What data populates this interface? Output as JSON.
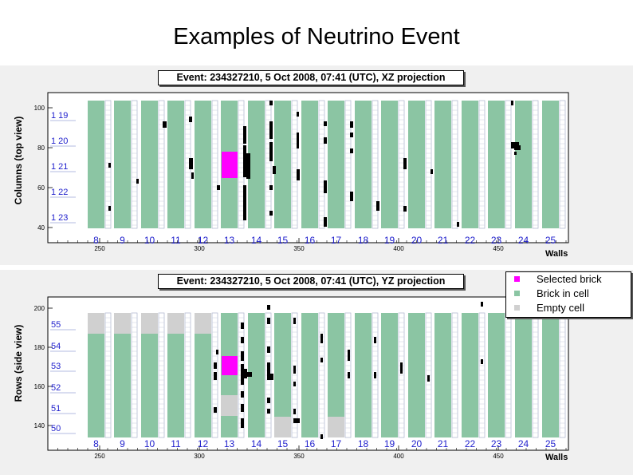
{
  "title": "Examples of Neutrino Event",
  "colors": {
    "panel_bg": "#f0f0f0",
    "brick": "#8bc5a3",
    "selected_brick": "#ff00ff",
    "empty_cell": "#d0d0d0",
    "hit": "#000000",
    "label_blue": "#1e1ecc"
  },
  "top_panel": {
    "event_label": "Event: 234327210,  5 Oct 2008, 07:41 (UTC), XZ projection",
    "y_axis_label": "Columns (top view)",
    "x_axis_label": "Walls",
    "y_ticks": [
      "100",
      "80",
      "60",
      "40"
    ],
    "x_ticks": [
      "250",
      "300",
      "350",
      "400",
      "450"
    ],
    "wall_numbers": [
      "8",
      "9",
      "10",
      "11",
      "12",
      "13",
      "14",
      "15",
      "16",
      "17",
      "18",
      "19",
      "20",
      "21",
      "22",
      "23",
      "24",
      "25"
    ],
    "cell_labels": [
      "1 19",
      "1 20",
      "1 21",
      "1 22",
      "1 23"
    ]
  },
  "bottom_panel": {
    "event_label": "Event: 234327210,  5 Oct 2008, 07:41 (UTC), YZ projection",
    "y_axis_label": "Rows (side view)",
    "x_axis_label": "Walls",
    "y_ticks": [
      "200",
      "180",
      "160",
      "140"
    ],
    "x_ticks": [
      "250",
      "300",
      "350",
      "400",
      "450"
    ],
    "wall_numbers": [
      "8",
      "9",
      "10",
      "11",
      "12",
      "13",
      "14",
      "15",
      "16",
      "17",
      "18",
      "19",
      "20",
      "21",
      "22",
      "23",
      "24",
      "25"
    ],
    "cell_labels": [
      "55",
      "54",
      "53",
      "52",
      "51",
      "50"
    ]
  },
  "legend": {
    "items": [
      {
        "label": "Selected brick",
        "color": "#ff00ff"
      },
      {
        "label": "Brick in cell",
        "color": "#8bc5a3"
      },
      {
        "label": "Empty cell",
        "color": "#d0d0d0"
      }
    ]
  }
}
